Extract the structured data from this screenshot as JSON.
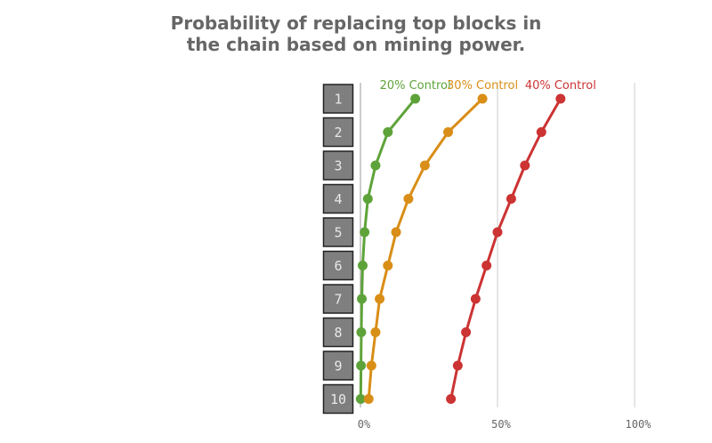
{
  "title_line1": "Probability of replacing top blocks in",
  "title_line2": "the chain based on mining power.",
  "chart_data": {
    "type": "line",
    "title": "Probability of replacing top blocks in the chain based on mining power.",
    "categories": [
      "1",
      "2",
      "3",
      "4",
      "5",
      "6",
      "7",
      "8",
      "9",
      "10"
    ],
    "xlim": [
      0,
      100
    ],
    "xticks": [
      "0%",
      "50%",
      "100%"
    ],
    "series": [
      {
        "name": "20% Control",
        "color": "#5ea33a",
        "values": [
          20,
          10,
          5.5,
          2.7,
          1.5,
          0.8,
          0.5,
          0.3,
          0.2,
          0.1
        ]
      },
      {
        "name": "30% Control",
        "color": "#d98e17",
        "values": [
          44.5,
          32,
          23.5,
          17.5,
          13,
          10,
          7,
          5.5,
          4,
          3
        ]
      },
      {
        "name": "40% Control",
        "color": "#cc3333",
        "values": [
          73,
          66,
          60,
          55,
          50,
          46,
          42,
          38.5,
          35.5,
          33
        ]
      }
    ]
  }
}
